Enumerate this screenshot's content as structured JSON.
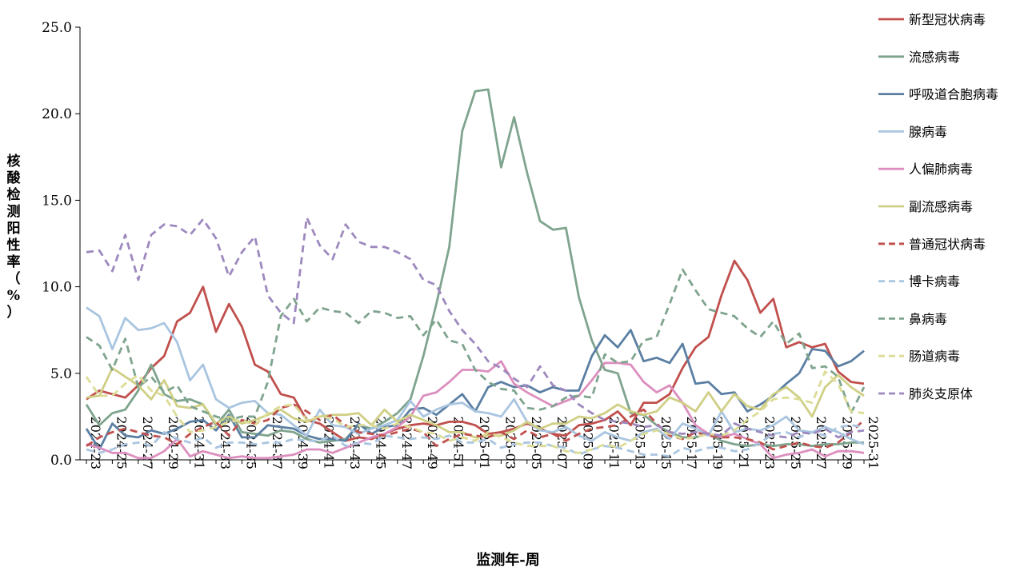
{
  "chart_data": {
    "type": "line",
    "xlabel": "监测年-周",
    "ylabel": "核酸检测阳性率（%）",
    "ylim": [
      0,
      25
    ],
    "yticks": [
      "0.0",
      "5.0",
      "10.0",
      "15.0",
      "20.0",
      "25.0"
    ],
    "grid": false,
    "legend_position": "right",
    "tick_labels": [
      "2024-23",
      "2024-25",
      "2024-27",
      "2024-29",
      "2024-31",
      "2024-33",
      "2024-35",
      "2024-37",
      "2024-39",
      "2024-41",
      "2024-43",
      "2024-45",
      "2024-47",
      "2024-49",
      "2024-51",
      "2025-01",
      "2025-03",
      "2025-05",
      "2025-07",
      "2025-09",
      "2025-11",
      "2025-13",
      "2025-15",
      "2025-17",
      "2025-19",
      "2025-21",
      "2025-23",
      "2025-25",
      "2025-27",
      "2025-29",
      "2025-31"
    ],
    "x": [
      "2024-23",
      "2024-24",
      "2024-25",
      "2024-26",
      "2024-27",
      "2024-28",
      "2024-29",
      "2024-30",
      "2024-31",
      "2024-32",
      "2024-33",
      "2024-34",
      "2024-35",
      "2024-36",
      "2024-37",
      "2024-38",
      "2024-39",
      "2024-40",
      "2024-41",
      "2024-42",
      "2024-43",
      "2024-44",
      "2024-45",
      "2024-46",
      "2024-47",
      "2024-48",
      "2024-49",
      "2024-50",
      "2024-51",
      "2024-52",
      "2025-01",
      "2025-02",
      "2025-03",
      "2025-04",
      "2025-05",
      "2025-06",
      "2025-07",
      "2025-08",
      "2025-09",
      "2025-10",
      "2025-11",
      "2025-12",
      "2025-13",
      "2025-14",
      "2025-15",
      "2025-16",
      "2025-17",
      "2025-18",
      "2025-19",
      "2025-20",
      "2025-21",
      "2025-22",
      "2025-23",
      "2025-24",
      "2025-25",
      "2025-26",
      "2025-27",
      "2025-28",
      "2025-29",
      "2025-30",
      "2025-31"
    ],
    "series": [
      {
        "name": "新型冠状病毒",
        "color": "#c0504d",
        "dash": "solid",
        "values": [
          3.5,
          4.0,
          3.8,
          3.6,
          4.3,
          5.3,
          6.0,
          8.0,
          8.5,
          10.0,
          7.4,
          9.0,
          7.7,
          5.5,
          5.1,
          3.8,
          3.6,
          2.3,
          2.1,
          1.6,
          1.1,
          1.3,
          1.2,
          1.5,
          1.8,
          2.0,
          2.1,
          2.0,
          2.2,
          2.2,
          2.0,
          1.5,
          1.6,
          1.8,
          2.1,
          1.8,
          1.5,
          1.4,
          2.0,
          2.1,
          2.3,
          2.8,
          2.0,
          3.3,
          3.3,
          3.8,
          5.3,
          6.5,
          7.1,
          9.5,
          11.5,
          10.4,
          8.5,
          9.3,
          6.5,
          6.8,
          6.5,
          6.7,
          5.1,
          4.5,
          4.4
        ]
      },
      {
        "name": "流感病毒",
        "color": "#7fa48e",
        "dash": "solid",
        "values": [
          3.2,
          2.0,
          2.7,
          2.9,
          4.0,
          5.5,
          3.8,
          3.4,
          3.5,
          3.2,
          2.0,
          2.9,
          1.6,
          1.5,
          1.4,
          1.7,
          1.6,
          1.2,
          1.0,
          1.1,
          1.2,
          2.0,
          1.8,
          2.2,
          2.7,
          3.5,
          6.0,
          9.0,
          12.3,
          19.0,
          21.3,
          21.4,
          16.9,
          19.8,
          16.6,
          13.8,
          13.3,
          13.4,
          9.4,
          6.9,
          5.2,
          5.0,
          2.7,
          2.6,
          2.0,
          1.6,
          1.3,
          1.3,
          1.5,
          1.1,
          0.9,
          0.8,
          0.9,
          0.8,
          0.9,
          0.9,
          0.8,
          0.9,
          0.9,
          1.0,
          1.0
        ]
      },
      {
        "name": "呼吸道合胞病毒",
        "color": "#5b7fa3",
        "dash": "solid",
        "values": [
          1.8,
          0.6,
          2.1,
          1.4,
          1.3,
          1.7,
          1.5,
          1.8,
          2.2,
          2.3,
          1.7,
          2.6,
          1.3,
          1.3,
          2.0,
          1.9,
          1.8,
          1.4,
          1.2,
          1.2,
          1.1,
          2.1,
          1.5,
          1.9,
          2.0,
          2.9,
          3.0,
          2.6,
          3.2,
          3.8,
          2.8,
          4.2,
          4.5,
          4.2,
          4.3,
          3.9,
          4.2,
          4.0,
          4.0,
          6.0,
          7.2,
          6.5,
          7.5,
          5.7,
          5.9,
          5.6,
          6.7,
          4.4,
          4.5,
          3.8,
          3.9,
          2.8,
          3.2,
          3.7,
          4.4,
          5.0,
          6.4,
          6.3,
          5.4,
          5.7,
          6.3
        ]
      },
      {
        "name": "腺病毒",
        "color": "#a9c5e0",
        "dash": "solid",
        "values": [
          8.8,
          8.3,
          6.4,
          8.2,
          7.5,
          7.6,
          7.9,
          6.8,
          4.6,
          5.5,
          3.5,
          3.0,
          3.3,
          3.4,
          2.7,
          2.6,
          2.0,
          1.4,
          2.9,
          2.0,
          1.9,
          1.5,
          1.8,
          2.0,
          2.3,
          3.4,
          2.5,
          2.9,
          3.2,
          3.3,
          2.8,
          2.7,
          2.5,
          3.5,
          2.2,
          1.7,
          1.6,
          1.9,
          1.4,
          1.1,
          1.6,
          1.3,
          1.1,
          1.6,
          1.8,
          1.2,
          2.1,
          1.8,
          1.4,
          2.8,
          1.6,
          1.8,
          1.7,
          2.0,
          2.5,
          1.7,
          1.6,
          1.9,
          1.6,
          1.2,
          0.9
        ]
      },
      {
        "name": "人偏肺病毒",
        "color": "#dc8fbf",
        "dash": "solid",
        "values": [
          0.9,
          0.7,
          0.4,
          0.4,
          0.1,
          0.1,
          0.5,
          1.2,
          0.2,
          0.5,
          0.3,
          0.1,
          0.2,
          0.1,
          0.1,
          0.2,
          0.3,
          0.6,
          0.6,
          0.4,
          0.7,
          1.0,
          1.3,
          1.5,
          1.9,
          2.5,
          3.7,
          3.9,
          4.5,
          5.2,
          5.2,
          5.1,
          5.7,
          4.4,
          3.9,
          3.5,
          3.1,
          3.4,
          3.7,
          4.6,
          5.6,
          5.6,
          5.5,
          4.5,
          3.9,
          4.3,
          3.3,
          2.0,
          1.5,
          1.3,
          1.5,
          1.2,
          0.9,
          0.1,
          0.3,
          0.4,
          0.6,
          0.2,
          0.5,
          0.5,
          0.4
        ]
      },
      {
        "name": "副流感病毒",
        "color": "#cfcf85",
        "dash": "solid",
        "values": [
          3.6,
          3.7,
          5.3,
          4.8,
          4.3,
          3.5,
          4.6,
          3.1,
          3.0,
          3.2,
          2.1,
          2.5,
          2.1,
          2.3,
          2.6,
          2.9,
          2.4,
          2.2,
          2.5,
          2.6,
          2.6,
          2.7,
          2.0,
          2.9,
          2.2,
          2.6,
          2.3,
          2.0,
          1.6,
          1.6,
          1.3,
          1.4,
          1.4,
          1.7,
          2.2,
          1.8,
          2.1,
          2.1,
          2.5,
          2.4,
          2.7,
          3.2,
          2.8,
          2.6,
          2.8,
          3.6,
          3.3,
          2.8,
          3.9,
          2.8,
          3.8,
          3.1,
          2.9,
          3.8,
          4.2,
          3.6,
          2.5,
          4.2,
          4.9,
          4.2,
          3.7
        ]
      },
      {
        "name": "普通冠状病毒",
        "color": "#c0504d",
        "dash": "dashed",
        "values": [
          0.8,
          1.3,
          1.6,
          1.8,
          1.6,
          1.4,
          1.3,
          0.9,
          1.5,
          1.9,
          2.2,
          1.4,
          2.3,
          2.1,
          2.3,
          3.0,
          3.2,
          2.8,
          2.3,
          2.6,
          2.0,
          1.6,
          1.5,
          1.4,
          1.6,
          1.8,
          1.6,
          0.8,
          1.2,
          1.5,
          1.4,
          1.3,
          1.6,
          1.2,
          1.7,
          1.3,
          1.5,
          1.1,
          1.5,
          1.8,
          1.9,
          2.0,
          2.5,
          2.9,
          2.1,
          1.4,
          1.2,
          1.6,
          1.4,
          1.3,
          1.3,
          1.2,
          1.0,
          0.6,
          0.8,
          1.0,
          0.8,
          0.7,
          1.0,
          1.6,
          2.3
        ]
      },
      {
        "name": "博卡病毒",
        "color": "#a9c5e0",
        "dash": "dashed",
        "values": [
          0.6,
          0.4,
          0.6,
          0.9,
          1.0,
          0.8,
          1.6,
          1.2,
          1.0,
          1.3,
          0.7,
          1.0,
          1.0,
          0.9,
          1.0,
          1.0,
          1.2,
          1.1,
          1.1,
          1.4,
          0.8,
          1.0,
          0.9,
          1.4,
          1.3,
          1.2,
          1.3,
          1.2,
          1.4,
          1.0,
          1.0,
          1.2,
          0.7,
          0.9,
          1.0,
          1.0,
          0.8,
          0.7,
          0.3,
          0.6,
          0.8,
          0.7,
          0.5,
          0.3,
          0.3,
          0.2,
          0.7,
          0.5,
          0.7,
          0.7,
          0.5,
          0.6,
          1.0,
          1.5,
          1.6,
          1.3,
          1.6,
          1.4,
          1.9,
          2.0,
          1.9
        ]
      },
      {
        "name": "鼻病毒",
        "color": "#7fa48e",
        "dash": "dashed",
        "values": [
          7.1,
          6.6,
          5.2,
          7.0,
          4.2,
          4.8,
          3.9,
          4.3,
          3.1,
          2.8,
          2.5,
          2.3,
          2.5,
          2.5,
          4.5,
          8.3,
          9.3,
          8.0,
          8.8,
          8.6,
          8.5,
          7.9,
          8.6,
          8.5,
          8.2,
          8.3,
          7.2,
          8.1,
          6.9,
          6.7,
          5.2,
          4.5,
          4.1,
          4.0,
          3.0,
          2.9,
          3.1,
          3.6,
          3.7,
          3.6,
          6.1,
          5.6,
          5.7,
          6.9,
          7.1,
          9.0,
          11.0,
          9.8,
          8.7,
          8.5,
          8.3,
          7.6,
          7.1,
          8.0,
          6.7,
          7.3,
          5.3,
          5.4,
          4.8,
          2.7,
          4.2
        ]
      },
      {
        "name": "肠道病毒",
        "color": "#dcdc96",
        "dash": "dashed",
        "values": [
          4.8,
          3.7,
          3.7,
          4.4,
          4.9,
          4.0,
          3.7,
          2.5,
          1.6,
          1.7,
          1.9,
          2.2,
          2.3,
          2.0,
          2.7,
          3.1,
          3.2,
          2.3,
          2.5,
          2.4,
          1.9,
          2.0,
          2.0,
          1.8,
          2.1,
          1.9,
          1.6,
          1.5,
          1.1,
          1.3,
          1.1,
          1.6,
          1.3,
          1.0,
          0.8,
          0.8,
          0.8,
          0.5,
          0.4,
          0.6,
          0.9,
          0.7,
          1.1,
          1.5,
          1.7,
          1.5,
          1.2,
          1.3,
          1.5,
          1.4,
          1.7,
          2.3,
          2.8,
          3.5,
          3.6,
          3.5,
          3.3,
          5.1,
          4.4,
          2.8,
          2.7
        ]
      },
      {
        "name": "肺炎支原体",
        "color": "#9d89be",
        "dash": "dashed",
        "values": [
          12.0,
          12.1,
          10.9,
          13.0,
          10.4,
          13.0,
          13.6,
          13.5,
          13.0,
          13.9,
          12.8,
          10.6,
          12.0,
          12.9,
          9.5,
          8.5,
          7.9,
          14.0,
          12.4,
          11.6,
          13.6,
          12.6,
          12.3,
          12.3,
          12.0,
          11.6,
          10.4,
          10.1,
          8.6,
          7.5,
          6.7,
          5.7,
          5.3,
          4.7,
          4.2,
          5.4,
          4.3,
          4.0,
          3.2,
          2.7,
          2.3,
          2.2,
          2.1,
          1.9,
          2.0,
          1.6,
          1.5,
          1.6,
          1.5,
          1.4,
          2.1,
          1.8,
          1.6,
          1.4,
          1.3,
          1.6,
          1.5,
          1.8,
          1.3,
          1.6,
          1.7
        ]
      }
    ]
  }
}
